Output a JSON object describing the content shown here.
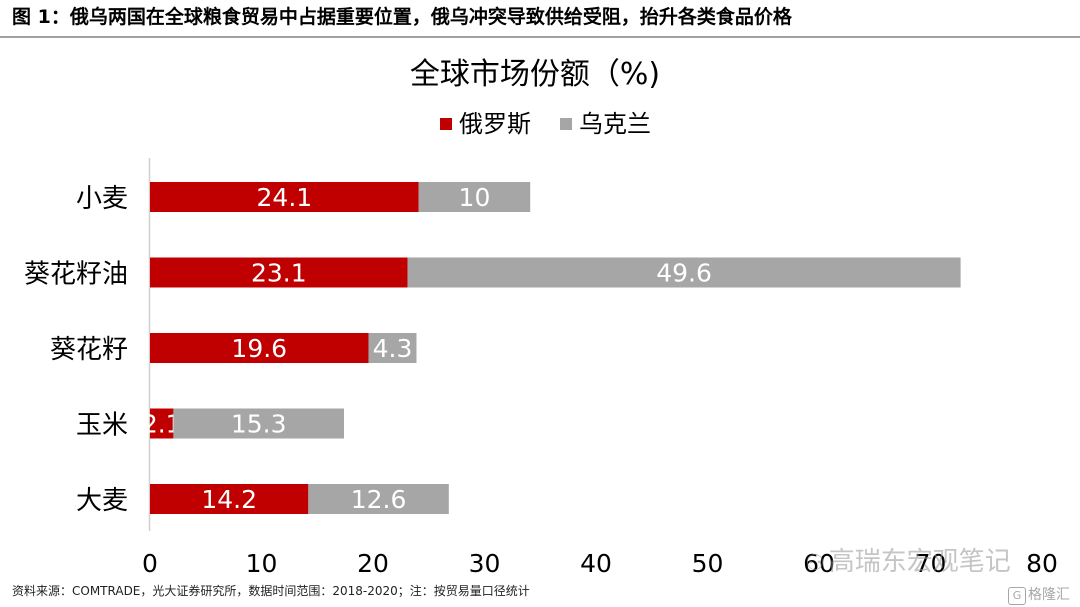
{
  "figure_header": "图 1：俄乌两国在全球粮食贸易中占据重要位置，俄乌冲突导致供给受阻，抬升各类食品价格",
  "source_note": "资料来源：COMTRADE，光大证券研究所，数据时间范围：2018-2020；注：按贸易量口径统计",
  "watermark_text": "高瑞东宏观笔记",
  "watermark_icon": "wechat-icon",
  "corner_logo_text": "格隆汇",
  "corner_logo_icon": "G",
  "chart_data": {
    "type": "bar",
    "orientation": "horizontal",
    "stacked": true,
    "title": "全球市场份额（%)",
    "categories": [
      "小麦",
      "葵花籽油",
      "葵花籽",
      "玉米",
      "大麦"
    ],
    "series": [
      {
        "name": "俄罗斯",
        "values": [
          24.1,
          23.1,
          19.6,
          2.1,
          14.2
        ],
        "color": "#c00000"
      },
      {
        "name": "乌克兰",
        "values": [
          10,
          49.6,
          4.3,
          15.3,
          12.6
        ],
        "color": "#a6a6a6"
      }
    ],
    "xlim": [
      0,
      80
    ],
    "xticks": [
      0,
      10,
      20,
      30,
      40,
      50,
      60,
      70,
      80
    ],
    "xlabel": "",
    "ylabel": "",
    "grid": false,
    "legend": "top-center",
    "data_label_color": "#ffffff"
  }
}
